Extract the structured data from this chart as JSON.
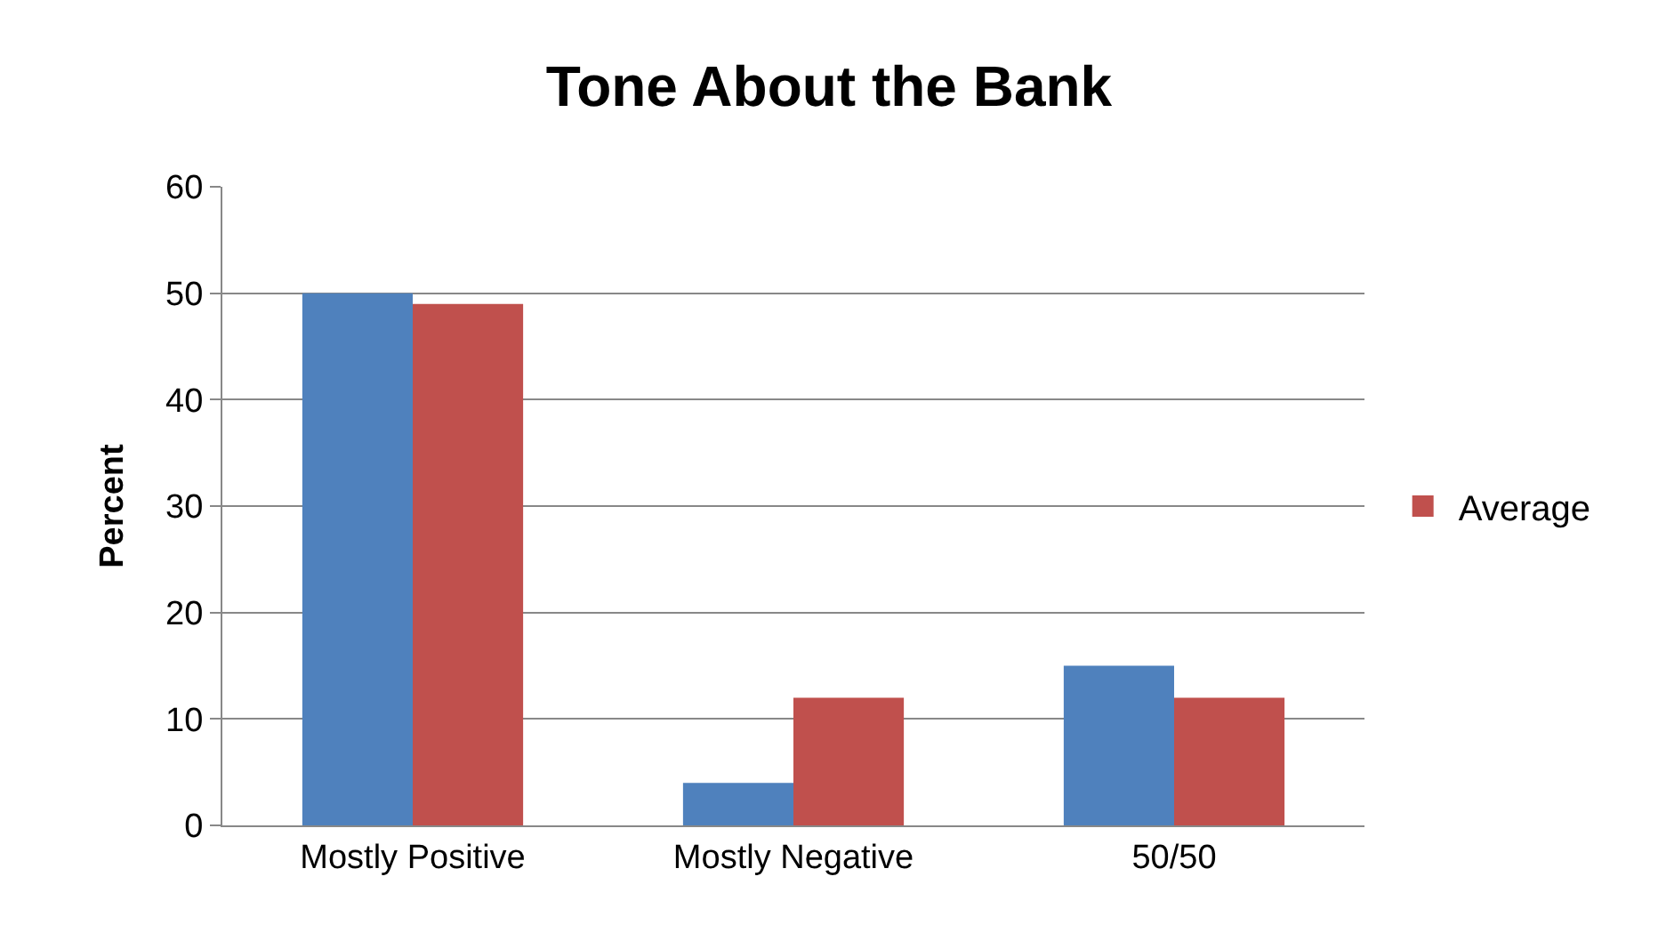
{
  "chart_data": {
    "type": "bar",
    "title": "Tone About the Bank",
    "ylabel": "Percent",
    "categories": [
      "Mostly Positive",
      "Mostly Negative",
      "50/50"
    ],
    "series": [
      {
        "color": "#4f81bd",
        "values": [
          50,
          4,
          15
        ]
      },
      {
        "name": "Average",
        "color": "#c0504d",
        "values": [
          49,
          12,
          12
        ]
      }
    ],
    "ylim": [
      0,
      60
    ],
    "yticks": [
      0,
      10,
      20,
      30,
      40,
      50,
      60
    ],
    "grid": "y",
    "legend": "right"
  }
}
